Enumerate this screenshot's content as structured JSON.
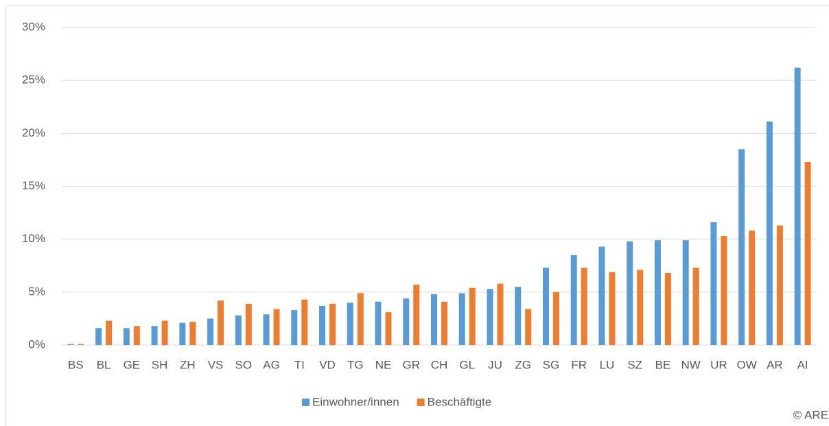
{
  "chart_data": {
    "type": "bar",
    "categories": [
      "BS",
      "BL",
      "GE",
      "SH",
      "ZH",
      "VS",
      "SO",
      "AG",
      "TI",
      "VD",
      "TG",
      "NE",
      "GR",
      "CH",
      "GL",
      "JU",
      "ZG",
      "SG",
      "FR",
      "LU",
      "SZ",
      "BE",
      "NW",
      "UR",
      "OW",
      "AR",
      "AI"
    ],
    "series": [
      {
        "name": "Einwohner/innen",
        "color": "#5b9bd5",
        "values": [
          0.1,
          1.6,
          1.6,
          1.8,
          2.1,
          2.5,
          2.8,
          2.9,
          3.3,
          3.7,
          4.0,
          4.1,
          4.4,
          4.8,
          4.9,
          5.3,
          5.5,
          7.3,
          8.5,
          9.3,
          9.8,
          9.9,
          9.9,
          11.6,
          18.5,
          21.1,
          26.2
        ]
      },
      {
        "name": "Beschäftigte",
        "color": "#ed7d31",
        "values": [
          0.1,
          2.3,
          1.8,
          2.3,
          2.2,
          4.2,
          3.9,
          3.4,
          4.3,
          3.9,
          4.9,
          3.1,
          5.7,
          4.1,
          5.4,
          5.8,
          3.4,
          5.0,
          7.3,
          6.9,
          7.1,
          6.8,
          7.3,
          10.3,
          10.8,
          11.3,
          17.3
        ]
      }
    ],
    "ylim": [
      0,
      30
    ],
    "yticks": [
      {
        "value": 0,
        "label": "0%"
      },
      {
        "value": 5,
        "label": "5%"
      },
      {
        "value": 10,
        "label": "10%"
      },
      {
        "value": 15,
        "label": "15%"
      },
      {
        "value": 20,
        "label": "20%"
      },
      {
        "value": 25,
        "label": "25%"
      },
      {
        "value": 30,
        "label": "30%"
      }
    ],
    "grid": true,
    "legend": "bottom",
    "copyright": "© ARE"
  }
}
